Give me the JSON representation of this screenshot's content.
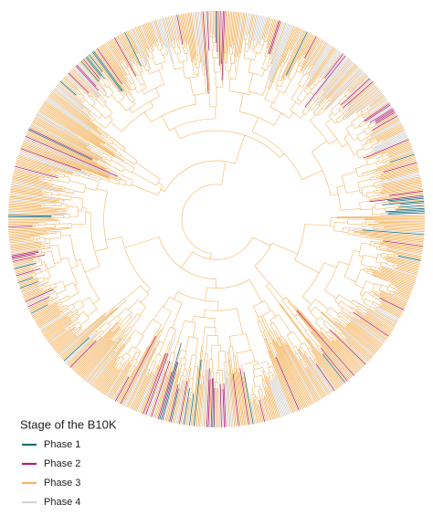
{
  "legend": {
    "title": "Stage of the B10K",
    "items": [
      {
        "label": "Phase 1",
        "color": "#1b6f7a"
      },
      {
        "label": "Phase 2",
        "color": "#b2226f"
      },
      {
        "label": "Phase 3",
        "color": "#f5b562"
      },
      {
        "label": "Phase 4",
        "color": "#d2d2d2"
      }
    ]
  }
}
